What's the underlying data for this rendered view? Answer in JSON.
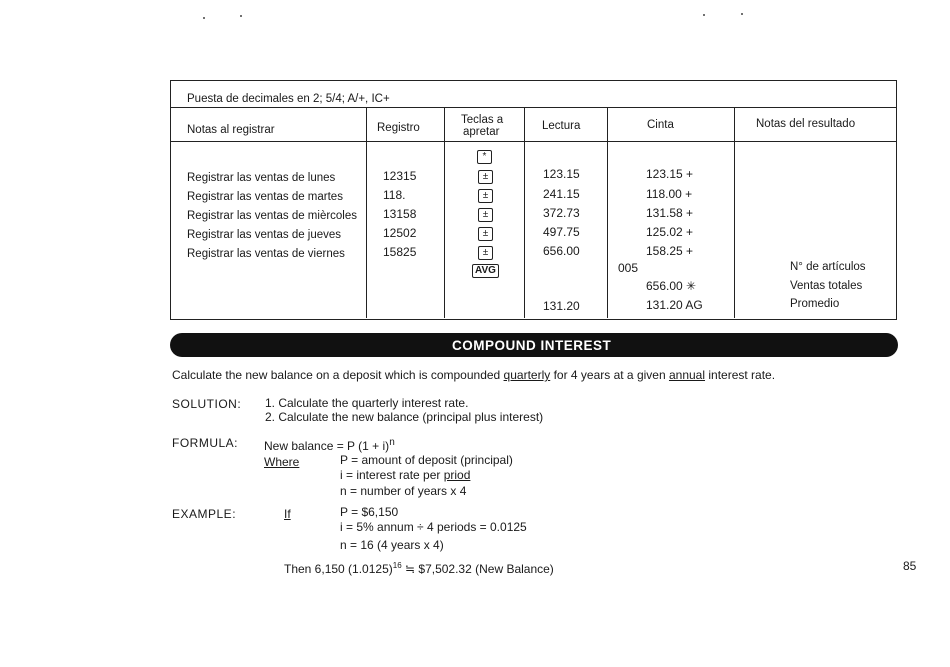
{
  "table": {
    "setting": "Puesta de decimales en 2; 5/4; A/+, IC+",
    "headers": [
      "Notas al registrar",
      "Registro",
      "Teclas a apretar",
      "Lectura",
      "Cinta",
      "Notas del resultado"
    ],
    "header_keys_line1": "Teclas a",
    "header_keys_line2": "apretar",
    "start_key": "*",
    "rows": [
      {
        "note": "Registrar las ventas de lunes",
        "entry": "12315",
        "key": "±",
        "reading": "123.15",
        "tape": "123.15 +"
      },
      {
        "note": "Registrar las ventas de martes",
        "entry": "118.",
        "key": "±",
        "reading": "241.15",
        "tape": "118.00 +"
      },
      {
        "note": "Registrar las ventas de mièrcoles",
        "entry": "13158",
        "key": "±",
        "reading": "372.73",
        "tape": "131.58 +"
      },
      {
        "note": "Registrar las ventas de jueves",
        "entry": "12502",
        "key": "±",
        "reading": "497.75",
        "tape": "125.02 +"
      },
      {
        "note": "Registrar las ventas de viernes",
        "entry": "15825",
        "key": "±",
        "reading": "656.00",
        "tape": "158.25 +"
      }
    ],
    "avg_key": "AVG",
    "tape_count": "005",
    "tape_total": "656.00 ✳",
    "tape_avg": "131.20 AG",
    "reading_avg": "131.20",
    "result_notes": [
      "N° de artículos",
      "Ventas totales",
      "Promedio"
    ]
  },
  "section_title": "COMPOUND INTEREST",
  "intro": {
    "pre": "Calculate the new balance on a deposit which is compounded ",
    "u1": "quarterly",
    "mid": " for 4 years at a given ",
    "u2": "annual",
    "post": " interest rate."
  },
  "solution": {
    "label": "SOLUTION:",
    "steps": [
      "1.  Calculate the quarterly interest rate.",
      "2.  Calculate the new balance (principal plus interest)"
    ]
  },
  "formula": {
    "label": "FORMULA:",
    "expr": "New balance  =  P (1 + i)",
    "exp": "n",
    "where": "Where",
    "defs": [
      "P  =  amount of deposit (principal)",
      "i  =  interest rate per "
    ],
    "priod": "priod",
    "def_n": "n  =  number of years x 4"
  },
  "example": {
    "label": "EXAMPLE:",
    "if": "If",
    "lines": [
      "P  =  $6,150",
      "i  =  5% annum ÷ 4 periods  =  0.0125",
      "n  =  16 (4 years x 4)"
    ],
    "then_pre": "Then  6,150 (1.0125)",
    "then_exp": "16",
    "then_post": " ≒  $7,502.32  (New Balance)"
  },
  "page_number": "85"
}
